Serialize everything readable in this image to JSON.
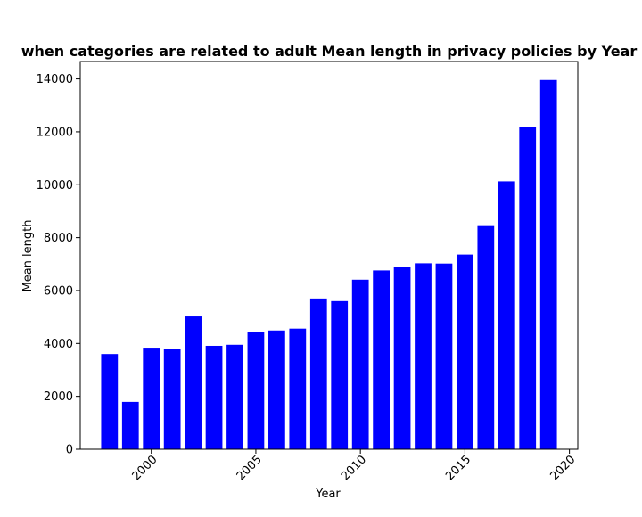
{
  "chart_data": {
    "type": "bar",
    "title": "when categories are related to adult Mean length in privacy policies by Year",
    "xlabel": "Year",
    "ylabel": "Mean length",
    "x": [
      1998,
      1999,
      2000,
      2001,
      2002,
      2003,
      2004,
      2005,
      2006,
      2007,
      2008,
      2009,
      2010,
      2011,
      2012,
      2013,
      2014,
      2015,
      2016,
      2017,
      2018,
      2019
    ],
    "values": [
      3600,
      1790,
      3840,
      3780,
      5020,
      3910,
      3950,
      4430,
      4490,
      4560,
      5700,
      5600,
      6410,
      6760,
      6880,
      7030,
      7020,
      7360,
      8470,
      10130,
      12190,
      13960
    ],
    "xlim": [
      1996.6,
      2020.4
    ],
    "ylim": [
      0,
      14660
    ],
    "xticks": [
      "2000",
      "2005",
      "2010",
      "2015",
      "2020"
    ],
    "yticks": [
      "0",
      "2000",
      "4000",
      "6000",
      "8000",
      "10000",
      "12000",
      "14000"
    ],
    "bar_color": "#0000ff",
    "grid": false,
    "legend": "none"
  }
}
